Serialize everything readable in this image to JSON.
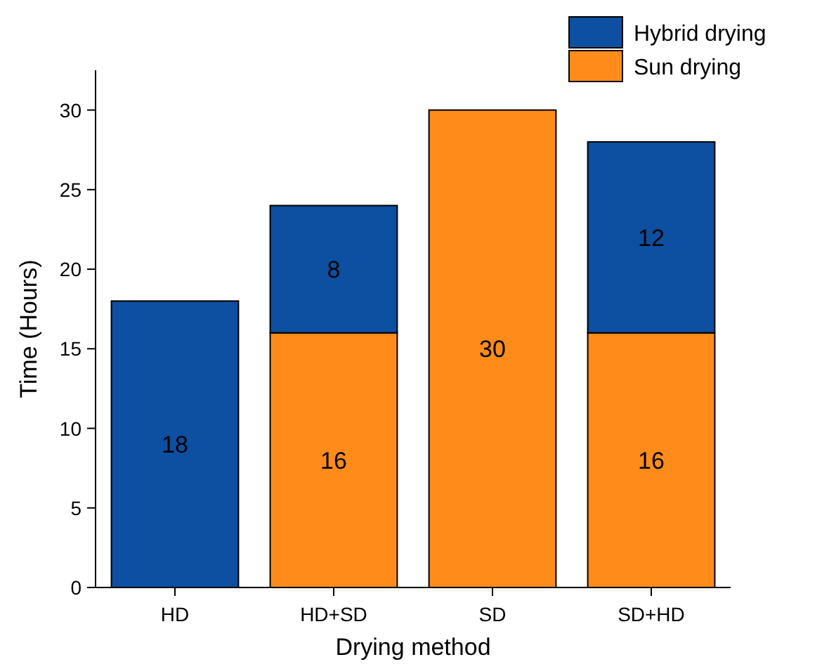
{
  "chart_data": {
    "type": "bar",
    "stacked": true,
    "xlabel": "Drying method",
    "ylabel": "Time (Hours)",
    "categories": [
      "HD",
      "HD+SD",
      "SD",
      "SD+HD"
    ],
    "series": [
      {
        "name": "Sun drying",
        "color": "#ff8c1a",
        "values": [
          0,
          16,
          30,
          16
        ],
        "value_labels": [
          null,
          "16",
          "30",
          "16"
        ]
      },
      {
        "name": "Hybrid drying",
        "color": "#0d4fa0",
        "values": [
          18,
          8,
          0,
          12
        ],
        "value_labels": [
          "18",
          "8",
          null,
          "12"
        ]
      }
    ],
    "ylim": [
      0,
      32.5
    ],
    "yticks": [
      0,
      5,
      10,
      15,
      20,
      25,
      30
    ],
    "legend": "top right"
  }
}
